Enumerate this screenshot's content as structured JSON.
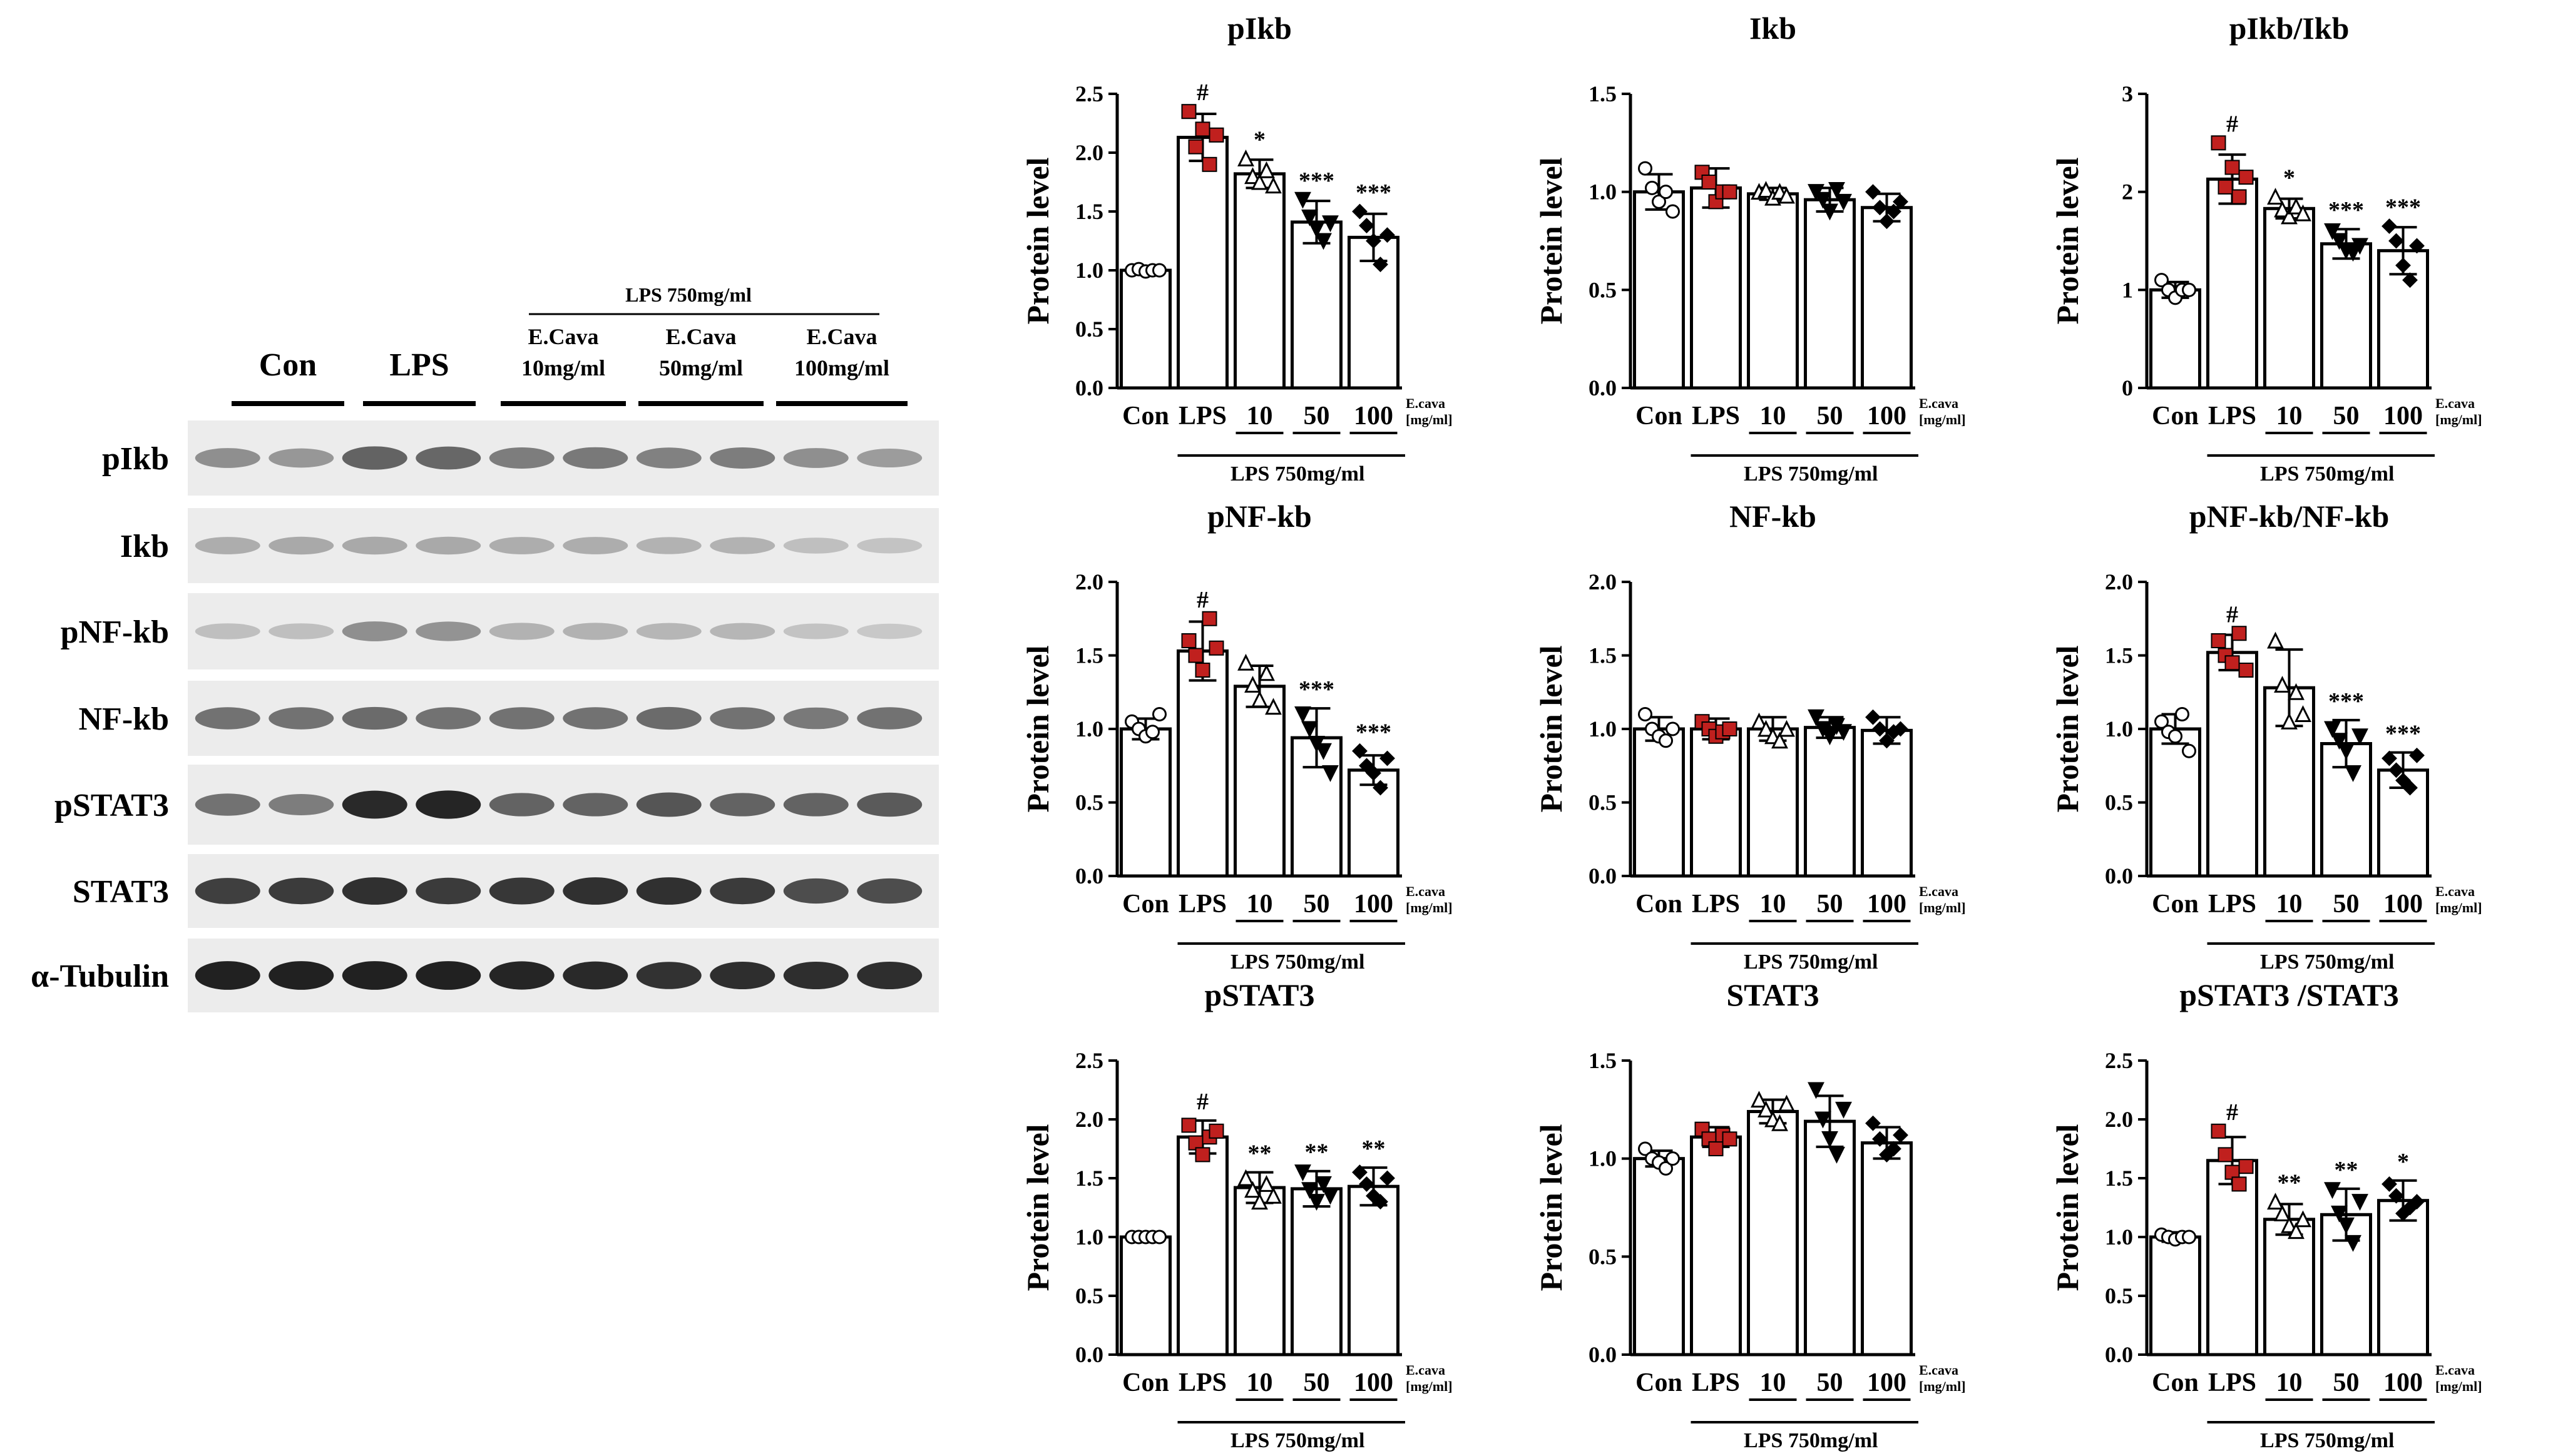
{
  "colors": {
    "lps_marker": "#c0201e",
    "ink": "#000000",
    "open_marker": "#ffffff"
  },
  "blot": {
    "condition_label": "LPS 750mg/ml",
    "groups": [
      {
        "line1": "Con",
        "line2": ""
      },
      {
        "line1": "LPS",
        "line2": ""
      },
      {
        "line1": "E.Cava",
        "line2": "10mg/ml"
      },
      {
        "line1": "E.Cava",
        "line2": "50mg/ml"
      },
      {
        "line1": "E.Cava",
        "line2": "100mg/ml"
      }
    ],
    "rows": [
      {
        "label": "pIkb",
        "intensity": [
          0.42,
          0.38,
          0.62,
          0.6,
          0.5,
          0.52,
          0.48,
          0.5,
          0.42,
          0.36
        ]
      },
      {
        "label": "Ikb",
        "intensity": [
          0.28,
          0.3,
          0.3,
          0.3,
          0.28,
          0.28,
          0.26,
          0.26,
          0.2,
          0.18
        ]
      },
      {
        "label": "pNF-kb",
        "intensity": [
          0.2,
          0.2,
          0.42,
          0.4,
          0.26,
          0.26,
          0.24,
          0.24,
          0.18,
          0.16
        ]
      },
      {
        "label": "NF-kb",
        "intensity": [
          0.55,
          0.55,
          0.58,
          0.55,
          0.55,
          0.55,
          0.58,
          0.55,
          0.52,
          0.55
        ]
      },
      {
        "label": "pSTAT3",
        "intensity": [
          0.55,
          0.5,
          0.88,
          0.9,
          0.62,
          0.62,
          0.68,
          0.62,
          0.62,
          0.66
        ]
      },
      {
        "label": "STAT3",
        "intensity": [
          0.78,
          0.8,
          0.85,
          0.8,
          0.82,
          0.85,
          0.85,
          0.8,
          0.72,
          0.72
        ]
      },
      {
        "label": "α-Tubulin",
        "intensity": [
          0.92,
          0.92,
          0.92,
          0.92,
          0.9,
          0.88,
          0.84,
          0.86,
          0.86,
          0.86
        ]
      }
    ]
  },
  "chart_data": [
    {
      "type": "bar",
      "title": "pIkb",
      "ylabel": "Protein level",
      "ylim": [
        0,
        2.5
      ],
      "yticks": [
        "0.0",
        "0.5",
        "1.0",
        "1.5",
        "2.0",
        "2.5"
      ],
      "categories": [
        "Con",
        "LPS",
        "10",
        "50",
        "100"
      ],
      "values": [
        1.0,
        2.13,
        1.82,
        1.41,
        1.28
      ],
      "errors": [
        0.03,
        0.2,
        0.12,
        0.18,
        0.2
      ],
      "points": [
        [
          1.0,
          1.01,
          0.99,
          1.0,
          1.0
        ],
        [
          2.35,
          2.05,
          2.2,
          1.9,
          2.15
        ],
        [
          1.95,
          1.8,
          1.75,
          1.85,
          1.72
        ],
        [
          1.6,
          1.45,
          1.35,
          1.25,
          1.4
        ],
        [
          1.5,
          1.38,
          1.25,
          1.05,
          1.3
        ]
      ],
      "marks": [
        "",
        "#",
        "*",
        "***",
        "***"
      ],
      "xlabel_note": "E.cava\n[mg/ml]",
      "group_label": "LPS 750mg/ml"
    },
    {
      "type": "bar",
      "title": "Ikb",
      "ylabel": "Protein level",
      "ylim": [
        0,
        1.5
      ],
      "yticks": [
        "0.0",
        "0.5",
        "1.0",
        "1.5"
      ],
      "categories": [
        "Con",
        "LPS",
        "10",
        "50",
        "100"
      ],
      "values": [
        1.0,
        1.02,
        0.99,
        0.96,
        0.92
      ],
      "errors": [
        0.09,
        0.1,
        0.03,
        0.06,
        0.07
      ],
      "points": [
        [
          1.12,
          1.02,
          0.95,
          1.0,
          0.9
        ],
        [
          1.1,
          1.05,
          0.95,
          1.0,
          1.0
        ],
        [
          1.0,
          1.01,
          0.97,
          1.0,
          0.98
        ],
        [
          1.0,
          0.96,
          0.9,
          1.01,
          0.95
        ],
        [
          1.0,
          0.92,
          0.85,
          0.9,
          0.95
        ]
      ],
      "marks": [
        "",
        "",
        "",
        "",
        ""
      ],
      "xlabel_note": "E.cava\n[mg/ml]",
      "group_label": "LPS 750mg/ml"
    },
    {
      "type": "bar",
      "title": "pIkb/Ikb",
      "ylabel": "Protein level",
      "ylim": [
        0,
        3
      ],
      "yticks": [
        "0",
        "1",
        "2",
        "3"
      ],
      "categories": [
        "Con",
        "LPS",
        "10",
        "50",
        "100"
      ],
      "values": [
        1.0,
        2.13,
        1.83,
        1.47,
        1.4
      ],
      "errors": [
        0.08,
        0.25,
        0.1,
        0.15,
        0.24
      ],
      "points": [
        [
          1.1,
          1.0,
          0.92,
          1.0,
          1.0
        ],
        [
          2.5,
          2.05,
          2.25,
          1.95,
          2.15
        ],
        [
          1.95,
          1.82,
          1.75,
          1.85,
          1.78
        ],
        [
          1.6,
          1.5,
          1.4,
          1.38,
          1.45
        ],
        [
          1.65,
          1.5,
          1.25,
          1.1,
          1.45
        ]
      ],
      "marks": [
        "",
        "#",
        "*",
        "***",
        "***"
      ],
      "xlabel_note": "E.cava\n[mg/ml]",
      "group_label": "LPS 750mg/ml"
    },
    {
      "type": "bar",
      "title": "pNF-kb",
      "ylabel": "Protein level",
      "ylim": [
        0,
        2.0
      ],
      "yticks": [
        "0.0",
        "0.5",
        "1.0",
        "1.5",
        "2.0"
      ],
      "categories": [
        "Con",
        "LPS",
        "10",
        "50",
        "100"
      ],
      "values": [
        1.0,
        1.53,
        1.29,
        0.94,
        0.72
      ],
      "errors": [
        0.07,
        0.2,
        0.14,
        0.2,
        0.1
      ],
      "points": [
        [
          1.05,
          1.0,
          0.95,
          0.98,
          1.1
        ],
        [
          1.6,
          1.5,
          1.4,
          1.75,
          1.55
        ],
        [
          1.45,
          1.3,
          1.2,
          1.38,
          1.15
        ],
        [
          1.1,
          1.0,
          0.9,
          0.85,
          0.7
        ],
        [
          0.85,
          0.75,
          0.7,
          0.6,
          0.8
        ]
      ],
      "marks": [
        "",
        "#",
        "",
        "***",
        "***"
      ],
      "xlabel_note": "E.cava\n[mg/ml]",
      "group_label": "LPS 750mg/ml"
    },
    {
      "type": "bar",
      "title": "NF-kb",
      "ylabel": "Protein level",
      "ylim": [
        0,
        2.0
      ],
      "yticks": [
        "0.0",
        "0.5",
        "1.0",
        "1.5",
        "2.0"
      ],
      "categories": [
        "Con",
        "LPS",
        "10",
        "50",
        "100"
      ],
      "values": [
        1.0,
        1.0,
        1.0,
        1.01,
        0.99
      ],
      "errors": [
        0.08,
        0.07,
        0.08,
        0.07,
        0.09
      ],
      "points": [
        [
          1.1,
          1.0,
          0.95,
          0.92,
          1.0
        ],
        [
          1.05,
          1.0,
          0.95,
          0.98,
          1.0
        ],
        [
          1.05,
          1.0,
          0.95,
          0.92,
          1.0
        ],
        [
          1.08,
          1.0,
          0.95,
          1.02,
          0.98
        ],
        [
          1.08,
          1.0,
          0.92,
          0.98,
          1.0
        ]
      ],
      "marks": [
        "",
        "",
        "",
        "",
        ""
      ],
      "xlabel_note": "E.cava\n[mg/ml]",
      "group_label": "LPS 750mg/ml"
    },
    {
      "type": "bar",
      "title": "pNF-kb/NF-kb",
      "ylabel": "Protein level",
      "ylim": [
        0,
        2.0
      ],
      "yticks": [
        "0.0",
        "0.5",
        "1.0",
        "1.5",
        "2.0"
      ],
      "categories": [
        "Con",
        "LPS",
        "10",
        "50",
        "100"
      ],
      "values": [
        1.0,
        1.52,
        1.28,
        0.9,
        0.72
      ],
      "errors": [
        0.1,
        0.12,
        0.26,
        0.16,
        0.12
      ],
      "points": [
        [
          1.05,
          0.98,
          0.95,
          1.1,
          0.85
        ],
        [
          1.6,
          1.5,
          1.45,
          1.65,
          1.4
        ],
        [
          1.6,
          1.3,
          1.05,
          1.25,
          1.1
        ],
        [
          1.0,
          0.92,
          0.85,
          0.7,
          0.95
        ],
        [
          0.8,
          0.72,
          0.65,
          0.6,
          0.82
        ]
      ],
      "marks": [
        "",
        "#",
        "",
        "***",
        "***"
      ],
      "xlabel_note": "E.cava\n[mg/ml]",
      "group_label": "LPS 750mg/ml"
    },
    {
      "type": "bar",
      "title": "pSTAT3",
      "ylabel": "Protein level",
      "ylim": [
        0,
        2.5
      ],
      "yticks": [
        "0.0",
        "0.5",
        "1.0",
        "1.5",
        "2.0",
        "2.5"
      ],
      "categories": [
        "Con",
        "LPS",
        "10",
        "50",
        "100"
      ],
      "values": [
        1.0,
        1.85,
        1.42,
        1.41,
        1.43
      ],
      "errors": [
        0.02,
        0.14,
        0.13,
        0.15,
        0.16
      ],
      "points": [
        [
          1.0,
          1.0,
          1.0,
          1.0,
          1.0
        ],
        [
          1.95,
          1.8,
          1.7,
          1.85,
          1.9
        ],
        [
          1.5,
          1.4,
          1.3,
          1.45,
          1.35
        ],
        [
          1.55,
          1.4,
          1.3,
          1.45,
          1.35
        ],
        [
          1.55,
          1.45,
          1.35,
          1.3,
          1.5
        ]
      ],
      "marks": [
        "",
        "#",
        "**",
        "**",
        "**"
      ],
      "xlabel_note": "E.cava\n[mg/ml]",
      "group_label": "LPS 750mg/ml"
    },
    {
      "type": "bar",
      "title": "STAT3",
      "ylabel": "Protein level",
      "ylim": [
        0,
        1.5
      ],
      "yticks": [
        "0.0",
        "0.5",
        "1.0",
        "1.5"
      ],
      "categories": [
        "Con",
        "LPS",
        "10",
        "50",
        "100"
      ],
      "values": [
        1.0,
        1.11,
        1.24,
        1.19,
        1.08
      ],
      "errors": [
        0.04,
        0.05,
        0.06,
        0.13,
        0.08
      ],
      "points": [
        [
          1.05,
          1.0,
          0.98,
          0.95,
          1.0
        ],
        [
          1.15,
          1.1,
          1.05,
          1.12,
          1.1
        ],
        [
          1.3,
          1.25,
          1.2,
          1.18,
          1.28
        ],
        [
          1.35,
          1.2,
          1.1,
          1.02,
          1.25
        ],
        [
          1.18,
          1.1,
          1.02,
          1.05,
          1.12
        ]
      ],
      "marks": [
        "",
        "",
        "",
        "",
        ""
      ],
      "xlabel_note": "E.cava\n[mg/ml]",
      "group_label": "LPS 750mg/ml"
    },
    {
      "type": "bar",
      "title": "pSTAT3 /STAT3",
      "ylabel": "Protein level",
      "ylim": [
        0,
        2.5
      ],
      "yticks": [
        "0.0",
        "0.5",
        "1.0",
        "1.5",
        "2.0",
        "2.5"
      ],
      "categories": [
        "Con",
        "LPS",
        "10",
        "50",
        "100"
      ],
      "values": [
        1.0,
        1.65,
        1.15,
        1.19,
        1.31
      ],
      "errors": [
        0.04,
        0.2,
        0.13,
        0.22,
        0.17
      ],
      "points": [
        [
          1.02,
          1.0,
          0.98,
          1.0,
          1.0
        ],
        [
          1.9,
          1.7,
          1.55,
          1.45,
          1.6
        ],
        [
          1.3,
          1.2,
          1.1,
          1.05,
          1.15
        ],
        [
          1.4,
          1.2,
          1.1,
          0.95,
          1.3
        ],
        [
          1.45,
          1.35,
          1.2,
          1.25,
          1.3
        ]
      ],
      "marks": [
        "",
        "#",
        "**",
        "**",
        "*"
      ],
      "xlabel_note": "E.cava\n[mg/ml]",
      "group_label": "LPS 750mg/ml"
    }
  ]
}
